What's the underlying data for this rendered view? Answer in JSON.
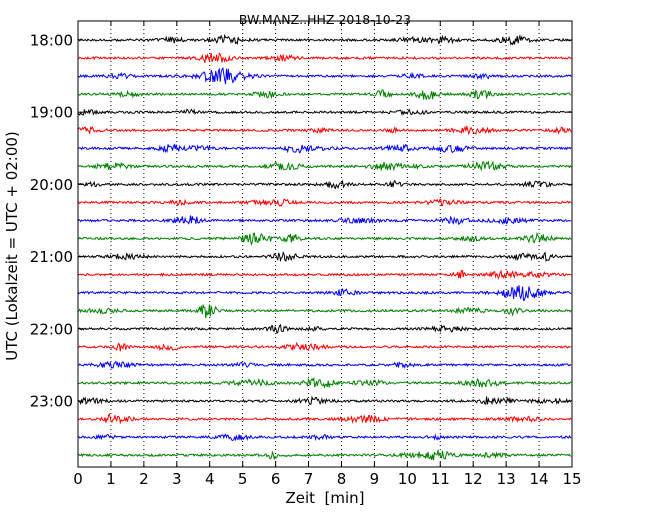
{
  "chart_data": {
    "type": "line",
    "title": "BW.MANZ..HHZ 2018-10-23",
    "xlabel": "Zeit  [min]",
    "ylabel": "UTC (Lokalzeit = UTC + 02:00)",
    "xlim": [
      0,
      15
    ],
    "x_ticks": [
      "0",
      "1",
      "2",
      "3",
      "4",
      "5",
      "6",
      "7",
      "8",
      "9",
      "10",
      "11",
      "12",
      "13",
      "14",
      "15"
    ],
    "y_ticks": [
      "18:00",
      "19:00",
      "20:00",
      "21:00",
      "22:00",
      "23:00"
    ],
    "trace_interval_min": 15,
    "grid": "vertical dotted",
    "legend": "none",
    "series_colors": [
      "#000000",
      "#ff0000",
      "#0000ff",
      "#008000"
    ],
    "traces": [
      {
        "start": "18:00"
      },
      {
        "start": "18:15"
      },
      {
        "start": "18:30"
      },
      {
        "start": "18:45"
      },
      {
        "start": "19:00"
      },
      {
        "start": "19:15"
      },
      {
        "start": "19:30"
      },
      {
        "start": "19:45"
      },
      {
        "start": "20:00"
      },
      {
        "start": "20:15"
      },
      {
        "start": "20:30"
      },
      {
        "start": "20:45"
      },
      {
        "start": "21:00"
      },
      {
        "start": "21:15"
      },
      {
        "start": "21:30"
      },
      {
        "start": "21:45"
      },
      {
        "start": "22:00"
      },
      {
        "start": "22:15"
      },
      {
        "start": "22:30"
      },
      {
        "start": "22:45"
      },
      {
        "start": "23:00"
      },
      {
        "start": "23:15"
      },
      {
        "start": "23:30"
      },
      {
        "start": "23:45"
      }
    ]
  }
}
